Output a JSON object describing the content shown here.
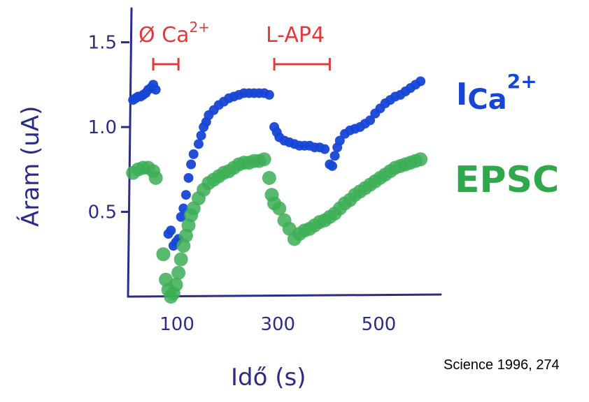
{
  "chart_data": {
    "type": "scatter",
    "title": "",
    "xlabel": "Idő (s)",
    "ylabel": "Áram (uA)",
    "x_ticks": [
      "100",
      "300",
      "500"
    ],
    "x_tick_values": [
      100,
      300,
      500
    ],
    "y_ticks": [
      "0.5",
      "1.0",
      "1.5"
    ],
    "y_tick_values": [
      0.5,
      1.0,
      1.5
    ],
    "xlim": [
      0,
      620
    ],
    "ylim": [
      0,
      1.7
    ],
    "grid": false,
    "legend_position": "right",
    "conditions": [
      {
        "label": "Ø Ca",
        "superscript": "2+",
        "x_start": 50,
        "x_end": 100
      },
      {
        "label": "L-AP4",
        "x_start": 290,
        "x_end": 400
      }
    ],
    "series": [
      {
        "name": "I",
        "name_sub": "Ca",
        "name_sup": "2+",
        "color": "#1746d6",
        "points": [
          [
            10,
            1.16
          ],
          [
            15,
            1.17
          ],
          [
            20,
            1.18
          ],
          [
            25,
            1.18
          ],
          [
            30,
            1.19
          ],
          [
            35,
            1.2
          ],
          [
            40,
            1.22
          ],
          [
            45,
            1.23
          ],
          [
            50,
            1.25
          ],
          [
            55,
            1.22
          ],
          [
            80,
            0.37
          ],
          [
            85,
            0.39
          ],
          [
            90,
            0.3
          ],
          [
            95,
            0.32
          ],
          [
            100,
            0.34
          ],
          [
            105,
            0.47
          ],
          [
            110,
            0.52
          ],
          [
            115,
            0.6
          ],
          [
            120,
            0.7
          ],
          [
            125,
            0.78
          ],
          [
            130,
            0.84
          ],
          [
            140,
            0.9
          ],
          [
            145,
            0.95
          ],
          [
            150,
            1.0
          ],
          [
            155,
            1.03
          ],
          [
            160,
            1.07
          ],
          [
            170,
            1.1
          ],
          [
            180,
            1.13
          ],
          [
            190,
            1.15
          ],
          [
            200,
            1.17
          ],
          [
            210,
            1.18
          ],
          [
            220,
            1.19
          ],
          [
            230,
            1.2
          ],
          [
            240,
            1.2
          ],
          [
            250,
            1.2
          ],
          [
            260,
            1.2
          ],
          [
            270,
            1.2
          ],
          [
            280,
            1.19
          ],
          [
            290,
            1.0
          ],
          [
            295,
            0.97
          ],
          [
            300,
            0.94
          ],
          [
            310,
            0.92
          ],
          [
            320,
            0.91
          ],
          [
            330,
            0.9
          ],
          [
            340,
            0.89
          ],
          [
            350,
            0.89
          ],
          [
            360,
            0.89
          ],
          [
            370,
            0.88
          ],
          [
            380,
            0.88
          ],
          [
            390,
            0.87
          ],
          [
            400,
            0.78
          ],
          [
            405,
            0.77
          ],
          [
            410,
            0.83
          ],
          [
            415,
            0.88
          ],
          [
            420,
            0.92
          ],
          [
            430,
            0.96
          ],
          [
            440,
            0.98
          ],
          [
            450,
            0.99
          ],
          [
            460,
            1.0
          ],
          [
            470,
            1.02
          ],
          [
            480,
            1.04
          ],
          [
            490,
            1.08
          ],
          [
            500,
            1.11
          ],
          [
            510,
            1.14
          ],
          [
            520,
            1.16
          ],
          [
            530,
            1.18
          ],
          [
            540,
            1.19
          ],
          [
            550,
            1.21
          ],
          [
            560,
            1.23
          ],
          [
            570,
            1.25
          ],
          [
            580,
            1.27
          ]
        ]
      },
      {
        "name": "EPSC",
        "color": "#3cae56",
        "points": [
          [
            10,
            0.73
          ],
          [
            20,
            0.75
          ],
          [
            30,
            0.76
          ],
          [
            40,
            0.76
          ],
          [
            50,
            0.74
          ],
          [
            55,
            0.7
          ],
          [
            70,
            0.25
          ],
          [
            75,
            0.1
          ],
          [
            80,
            0.04
          ],
          [
            85,
            0.0
          ],
          [
            90,
            0.02
          ],
          [
            95,
            0.07
          ],
          [
            100,
            0.14
          ],
          [
            105,
            0.22
          ],
          [
            110,
            0.3
          ],
          [
            115,
            0.36
          ],
          [
            120,
            0.42
          ],
          [
            125,
            0.48
          ],
          [
            130,
            0.52
          ],
          [
            140,
            0.58
          ],
          [
            150,
            0.63
          ],
          [
            160,
            0.67
          ],
          [
            170,
            0.69
          ],
          [
            180,
            0.71
          ],
          [
            190,
            0.73
          ],
          [
            200,
            0.74
          ],
          [
            210,
            0.76
          ],
          [
            220,
            0.78
          ],
          [
            230,
            0.79
          ],
          [
            240,
            0.79
          ],
          [
            250,
            0.8
          ],
          [
            260,
            0.8
          ],
          [
            270,
            0.81
          ],
          [
            280,
            0.7
          ],
          [
            285,
            0.6
          ],
          [
            290,
            0.55
          ],
          [
            300,
            0.52
          ],
          [
            310,
            0.45
          ],
          [
            320,
            0.4
          ],
          [
            330,
            0.34
          ],
          [
            340,
            0.37
          ],
          [
            350,
            0.39
          ],
          [
            360,
            0.4
          ],
          [
            370,
            0.42
          ],
          [
            380,
            0.44
          ],
          [
            390,
            0.45
          ],
          [
            400,
            0.47
          ],
          [
            410,
            0.49
          ],
          [
            420,
            0.52
          ],
          [
            430,
            0.55
          ],
          [
            440,
            0.57
          ],
          [
            450,
            0.6
          ],
          [
            460,
            0.62
          ],
          [
            470,
            0.64
          ],
          [
            480,
            0.66
          ],
          [
            490,
            0.68
          ],
          [
            500,
            0.7
          ],
          [
            510,
            0.72
          ],
          [
            520,
            0.74
          ],
          [
            530,
            0.76
          ],
          [
            540,
            0.77
          ],
          [
            550,
            0.78
          ],
          [
            560,
            0.79
          ],
          [
            570,
            0.8
          ],
          [
            580,
            0.81
          ]
        ]
      }
    ],
    "source_note": "Science 1996, 274"
  }
}
